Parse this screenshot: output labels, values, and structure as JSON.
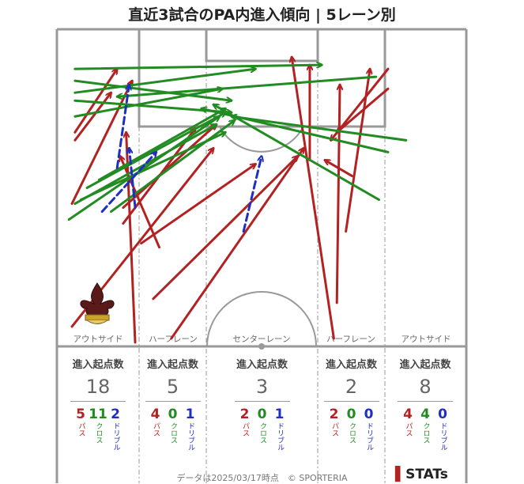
{
  "title": "直近3試合のPA内進入傾向 | 5レーン別",
  "footer": "データは2025/03/17時点　© SPORTERIA",
  "logo": "STATs",
  "colors": {
    "pass": "#b22222",
    "cross": "#228b22",
    "dribble": "#1f2fbf",
    "pitch_line": "#999999"
  },
  "lane_labels": [
    "アウトサイド",
    "ハーフレーン",
    "センターレーン",
    "ハーフレーン",
    "アウトサイド"
  ],
  "lanes": [
    {
      "header": "進入起点数",
      "total": "18",
      "pass": "5",
      "cross": "11",
      "dribble": "2"
    },
    {
      "header": "進入起点数",
      "total": "5",
      "pass": "4",
      "cross": "0",
      "dribble": "1"
    },
    {
      "header": "進入起点数",
      "total": "3",
      "pass": "2",
      "cross": "0",
      "dribble": "1"
    },
    {
      "header": "進入起点数",
      "total": "2",
      "pass": "2",
      "cross": "0",
      "dribble": "0"
    },
    {
      "header": "進入起点数",
      "total": "8",
      "pass": "4",
      "cross": "4",
      "dribble": "0"
    }
  ],
  "labels": {
    "pass": "パス",
    "cross": "クロス",
    "dribble": "ドリブル"
  },
  "chart_data": {
    "type": "scatter",
    "title": "直近3試合のPA内進入傾向 | 5レーン別",
    "pitch": {
      "width": 68,
      "length": 40
    },
    "arrows": [
      {
        "kind": "pass",
        "from": [
          2.5,
          2.5
        ],
        "to": [
          26,
          25
        ]
      },
      {
        "kind": "pass",
        "from": [
          2.5,
          18
        ],
        "to": [
          12.5,
          33.5
        ]
      },
      {
        "kind": "pass",
        "from": [
          3,
          27
        ],
        "to": [
          10,
          35
        ]
      },
      {
        "kind": "pass",
        "from": [
          3,
          26
        ],
        "to": [
          9,
          32
        ]
      },
      {
        "kind": "pass",
        "from": [
          11,
          15.5
        ],
        "to": [
          23,
          27.5
        ]
      },
      {
        "kind": "pass",
        "from": [
          13,
          0.5
        ],
        "to": [
          11.5,
          27
        ]
      },
      {
        "kind": "pass",
        "from": [
          17,
          12.5
        ],
        "to": [
          10.5,
          24
        ]
      },
      {
        "kind": "pass",
        "from": [
          14,
          13
        ],
        "to": [
          33,
          23
        ]
      },
      {
        "kind": "pass",
        "from": [
          11,
          17.5
        ],
        "to": [
          26.5,
          28
        ]
      },
      {
        "kind": "pass",
        "from": [
          16,
          6
        ],
        "to": [
          40,
          24
        ]
      },
      {
        "kind": "pass",
        "from": [
          19,
          1
        ],
        "to": [
          41,
          25
        ]
      },
      {
        "kind": "pass",
        "from": [
          46,
          1
        ],
        "to": [
          39,
          36.5
        ]
      },
      {
        "kind": "pass",
        "from": [
          42,
          23.5
        ],
        "to": [
          42,
          35.5
        ]
      },
      {
        "kind": "pass",
        "from": [
          46.5,
          5.5
        ],
        "to": [
          47,
          33
        ]
      },
      {
        "kind": "pass",
        "from": [
          49,
          21.5
        ],
        "to": [
          44.5,
          23.5
        ]
      },
      {
        "kind": "pass",
        "from": [
          55,
          32.5
        ],
        "to": [
          46.5,
          27
        ]
      },
      {
        "kind": "pass",
        "from": [
          55,
          35
        ],
        "to": [
          45.5,
          26
        ]
      },
      {
        "kind": "pass",
        "from": [
          48,
          14.5
        ],
        "to": [
          52,
          35
        ]
      },
      {
        "kind": "cross",
        "from": [
          3,
          35
        ],
        "to": [
          44,
          35.5
        ]
      },
      {
        "kind": "cross",
        "from": [
          3,
          32
        ],
        "to": [
          33,
          35
        ]
      },
      {
        "kind": "cross",
        "from": [
          3,
          33.5
        ],
        "to": [
          29,
          31
        ]
      },
      {
        "kind": "cross",
        "from": [
          3,
          31
        ],
        "to": [
          29,
          29.5
        ]
      },
      {
        "kind": "cross",
        "from": [
          3,
          29
        ],
        "to": [
          27.5,
          32.5
        ]
      },
      {
        "kind": "cross",
        "from": [
          2,
          16
        ],
        "to": [
          27,
          29
        ]
      },
      {
        "kind": "cross",
        "from": [
          3,
          18
        ],
        "to": [
          26.5,
          28
        ]
      },
      {
        "kind": "cross",
        "from": [
          4,
          18.5
        ],
        "to": [
          28,
          27
        ]
      },
      {
        "kind": "cross",
        "from": [
          5,
          20
        ],
        "to": [
          28,
          29.5
        ]
      },
      {
        "kind": "cross",
        "from": [
          9,
          17
        ],
        "to": [
          29.5,
          28.5
        ]
      },
      {
        "kind": "cross",
        "from": [
          7,
          21
        ],
        "to": [
          28,
          30
        ]
      },
      {
        "kind": "cross",
        "from": [
          53,
          34
        ],
        "to": [
          10,
          31.5
        ]
      },
      {
        "kind": "cross",
        "from": [
          55,
          24.5
        ],
        "to": [
          24,
          30
        ]
      },
      {
        "kind": "cross",
        "from": [
          53.5,
          18.5
        ],
        "to": [
          26,
          30.5
        ]
      },
      {
        "kind": "cross",
        "from": [
          58,
          26
        ],
        "to": [
          29,
          29
        ]
      },
      {
        "kind": "dribble",
        "from": [
          10,
          22.5
        ],
        "to": [
          12,
          33
        ]
      },
      {
        "kind": "dribble",
        "from": [
          7.5,
          17
        ],
        "to": [
          16.5,
          24.5
        ]
      },
      {
        "kind": "dribble",
        "from": [
          13,
          17.5
        ],
        "to": [
          12,
          25
        ]
      },
      {
        "kind": "dribble",
        "from": [
          31,
          14.5
        ],
        "to": [
          34,
          24
        ]
      }
    ]
  }
}
